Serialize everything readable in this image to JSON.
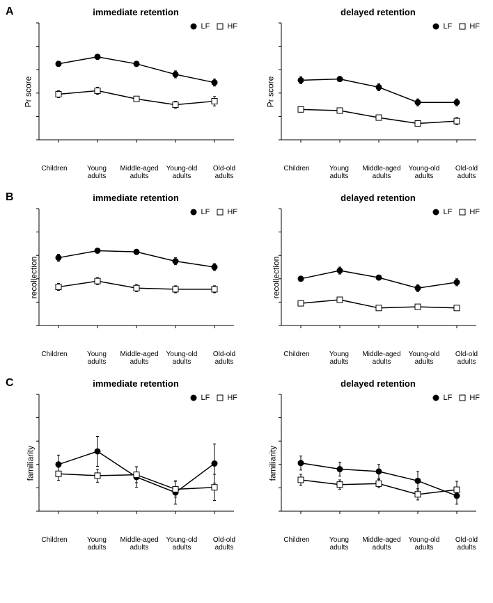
{
  "x_labels": [
    "Children",
    "Young\nadults",
    "Middle-aged\nadults",
    "Young-old\nadults",
    "Old-old\nadults"
  ],
  "legend": {
    "lf": "LF",
    "hf": "HF"
  },
  "colors": {
    "line": "#000000",
    "lf_fill": "#000000",
    "hf_fill": "#ffffff",
    "axis": "#000000",
    "tick": "#000000",
    "bg": "#ffffff"
  },
  "marker": {
    "size": 4,
    "line_width": 1.5,
    "error_cap": 4
  },
  "panels": [
    {
      "row_label": "A",
      "ylabel": "Pr score",
      "ylim": [
        0.0,
        1.0
      ],
      "ytick_step": 0.2,
      "ytick_fmt": "dot2",
      "charts": [
        {
          "title": "immediate retention",
          "series": [
            {
              "key": "lf",
              "values": [
                0.65,
                0.71,
                0.65,
                0.56,
                0.49
              ],
              "err": [
                0.02,
                0.02,
                0.02,
                0.03,
                0.03
              ]
            },
            {
              "key": "hf",
              "values": [
                0.39,
                0.42,
                0.35,
                0.3,
                0.33
              ],
              "err": [
                0.03,
                0.03,
                0.02,
                0.03,
                0.04
              ]
            }
          ]
        },
        {
          "title": "delayed retention",
          "series": [
            {
              "key": "lf",
              "values": [
                0.51,
                0.52,
                0.45,
                0.32,
                0.32
              ],
              "err": [
                0.03,
                0.02,
                0.03,
                0.03,
                0.03
              ]
            },
            {
              "key": "hf",
              "values": [
                0.26,
                0.25,
                0.19,
                0.14,
                0.16
              ],
              "err": [
                0.02,
                0.02,
                0.02,
                0.02,
                0.03
              ]
            }
          ]
        }
      ]
    },
    {
      "row_label": "B",
      "ylabel": "recollection",
      "ylim": [
        0.0,
        1.0
      ],
      "ytick_step": 0.2,
      "ytick_fmt": "dot2",
      "charts": [
        {
          "title": "immediate retention",
          "series": [
            {
              "key": "lf",
              "values": [
                0.58,
                0.64,
                0.63,
                0.55,
                0.5
              ],
              "err": [
                0.03,
                0.02,
                0.02,
                0.03,
                0.03
              ]
            },
            {
              "key": "hf",
              "values": [
                0.33,
                0.38,
                0.32,
                0.31,
                0.31
              ],
              "err": [
                0.03,
                0.03,
                0.03,
                0.03,
                0.03
              ]
            }
          ]
        },
        {
          "title": "delayed retention",
          "series": [
            {
              "key": "lf",
              "values": [
                0.4,
                0.47,
                0.41,
                0.32,
                0.37
              ],
              "err": [
                0.02,
                0.03,
                0.02,
                0.03,
                0.03
              ]
            },
            {
              "key": "hf",
              "values": [
                0.19,
                0.22,
                0.15,
                0.16,
                0.15
              ],
              "err": [
                0.02,
                0.02,
                0.02,
                0.02,
                0.02
              ]
            }
          ]
        }
      ]
    },
    {
      "row_label": "C",
      "ylabel": "familiarity",
      "ylim": [
        -0.5,
        2.0
      ],
      "ytick_step": 0.5,
      "ytick_fmt": "neg2",
      "charts": [
        {
          "title": "immediate retention",
          "series": [
            {
              "key": "lf",
              "values": [
                0.5,
                0.78,
                0.23,
                -0.1,
                0.52
              ],
              "err": [
                0.2,
                0.32,
                0.22,
                0.25,
                0.42
              ]
            },
            {
              "key": "hf",
              "values": [
                0.3,
                0.26,
                0.28,
                -0.03,
                0.01
              ],
              "err": [
                0.14,
                0.14,
                0.17,
                0.17,
                0.28
              ]
            }
          ]
        },
        {
          "title": "delayed retention",
          "series": [
            {
              "key": "lf",
              "values": [
                0.53,
                0.4,
                0.35,
                0.15,
                -0.17
              ],
              "err": [
                0.15,
                0.15,
                0.15,
                0.2,
                0.18
              ]
            },
            {
              "key": "hf",
              "values": [
                0.17,
                0.07,
                0.09,
                -0.14,
                -0.04
              ],
              "err": [
                0.12,
                0.1,
                0.09,
                0.12,
                0.18
              ]
            }
          ]
        }
      ]
    }
  ]
}
